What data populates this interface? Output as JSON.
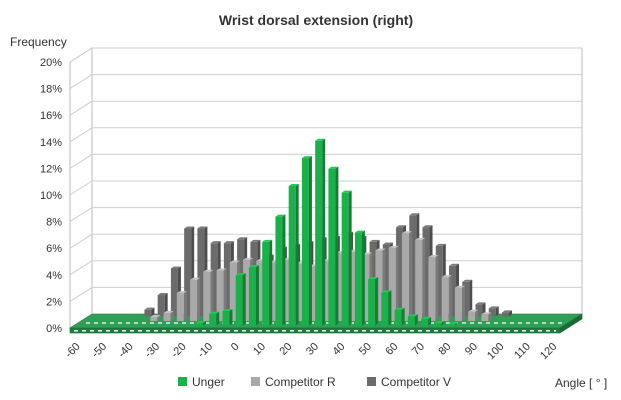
{
  "chart_data": {
    "type": "bar",
    "title": "Wrist dorsal extension (right)",
    "ylabel": "Frequency",
    "xlabel": "Angle [ ° ]",
    "ylim": [
      0,
      20
    ],
    "yticks": [
      "0%",
      "2%",
      "4%",
      "6%",
      "8%",
      "10%",
      "12%",
      "14%",
      "16%",
      "18%",
      "20%"
    ],
    "categories": [
      "-60",
      "-55",
      "-50",
      "-45",
      "-40",
      "-35",
      "-30",
      "-25",
      "-20",
      "-15",
      "-10",
      "-5",
      "0",
      "5",
      "10",
      "15",
      "20",
      "25",
      "30",
      "35",
      "40",
      "45",
      "50",
      "55",
      "60",
      "65",
      "70",
      "75",
      "80",
      "85",
      "90",
      "95",
      "100",
      "105",
      "110",
      "115",
      "120"
    ],
    "xtick_labels": [
      "-60",
      "-50",
      "-40",
      "-30",
      "-20",
      "-10",
      "0",
      "10",
      "20",
      "30",
      "40",
      "50",
      "60",
      "70",
      "80",
      "90",
      "100",
      "110",
      "120"
    ],
    "series": [
      {
        "name": "Unger",
        "color": "#1ab04a",
        "values": [
          0,
          0,
          0,
          0,
          0,
          0,
          0,
          0,
          0,
          0.2,
          0.9,
          1.1,
          3.8,
          4.4,
          6.3,
          8.2,
          10.5,
          12.6,
          13.9,
          11.8,
          10.0,
          7.0,
          3.5,
          2.5,
          1.2,
          0.7,
          0.5,
          0.2,
          0.1,
          0,
          0,
          0,
          0,
          0,
          0,
          0,
          0
        ]
      },
      {
        "name": "Competitor R",
        "color": "#a9a9a9",
        "values": [
          0,
          0,
          0,
          0,
          0,
          0.3,
          0.6,
          2.1,
          3.1,
          3.7,
          3.8,
          4.4,
          4.6,
          4.5,
          4.4,
          4.6,
          4.3,
          4.1,
          4.5,
          5.1,
          5.2,
          5.0,
          5.3,
          5.5,
          6.6,
          6.1,
          4.8,
          3.3,
          2.5,
          0.7,
          0.5,
          0,
          0,
          0,
          0,
          0,
          0
        ]
      },
      {
        "name": "Competitor V",
        "color": "#6b6b6b",
        "values": [
          0,
          0,
          0,
          0,
          0.5,
          1.6,
          3.6,
          6.6,
          6.6,
          5.5,
          5.5,
          5.8,
          5.6,
          4.5,
          5.1,
          5.3,
          5.5,
          5.8,
          5.9,
          6.2,
          5.9,
          5.6,
          5.4,
          6.7,
          7.6,
          6.7,
          5.3,
          3.8,
          2.6,
          0.9,
          0.6,
          0.3,
          0,
          0,
          0,
          0,
          0
        ]
      }
    ],
    "legend_position": "bottom",
    "grid": true
  }
}
